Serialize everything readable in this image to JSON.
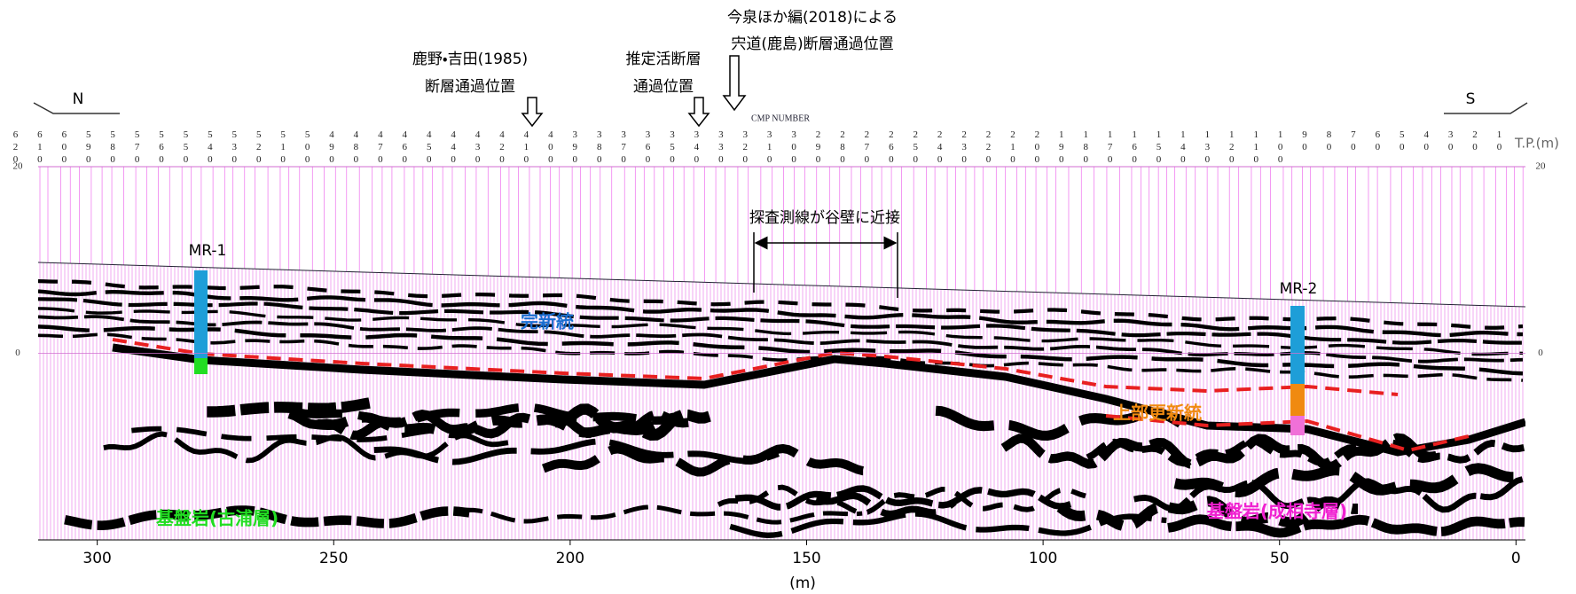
{
  "section": {
    "direction_left": "N",
    "direction_right": "S",
    "y_label": "T.P.(m)",
    "cmp_label": "CMP NUMBER",
    "x_label": "(m)",
    "xlim": [
      312.5,
      -2
    ],
    "xticks": [
      0,
      50,
      100,
      150,
      200,
      250,
      300
    ],
    "ylim": [
      -20,
      20
    ],
    "yticks": [
      20,
      0
    ],
    "cmp_numbers": [
      620,
      610,
      600,
      590,
      580,
      570,
      560,
      550,
      540,
      530,
      520,
      510,
      500,
      490,
      480,
      470,
      460,
      450,
      440,
      430,
      420,
      410,
      400,
      390,
      380,
      370,
      360,
      350,
      340,
      330,
      320,
      310,
      300,
      290,
      280,
      270,
      260,
      250,
      240,
      230,
      220,
      210,
      200,
      190,
      180,
      170,
      160,
      150,
      140,
      130,
      120,
      110,
      100,
      90,
      80,
      70,
      60,
      50,
      40,
      30,
      20,
      10
    ],
    "annotations": {
      "kano_yoshida": [
        "鹿野・吉田(1985)",
        "断層通過位置"
      ],
      "estimated_fault": [
        "推定活断層",
        "通過位置"
      ],
      "imaizumi": [
        "今泉ほか編(2018)による",
        "宍道(鹿島)断層通過位置"
      ],
      "valley_wall": "探査測線が谷壁に近接"
    },
    "boreholes": [
      "MR-1",
      "MR-2"
    ],
    "units": {
      "holocene": "完新統",
      "upper_pleistocene": "上部更新統",
      "basement_kora": "基盤岩(古浦層)",
      "basement_jouzoji": "基盤岩(成相寺層)"
    }
  }
}
